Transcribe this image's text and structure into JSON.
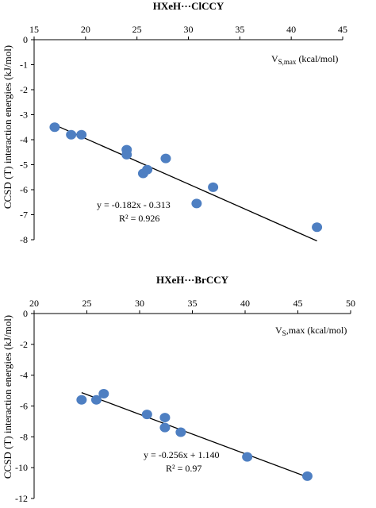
{
  "ylabel": "CCSD (T) interaction energies (kJ/mol)",
  "chart_data": [
    {
      "type": "scatter",
      "title": "HXeH···ClCCY",
      "xlabel": "V",
      "xlabel_sub": "S,max",
      "xlabel_unit": " (kcal/mol)",
      "xlim": [
        15,
        45
      ],
      "xticks": [
        15,
        20,
        25,
        30,
        35,
        40,
        45
      ],
      "ylim": [
        -8,
        0
      ],
      "yticks": [
        0,
        -1,
        -2,
        -3,
        -4,
        -5,
        -6,
        -7,
        -8
      ],
      "x": [
        17.0,
        18.6,
        19.6,
        24.0,
        24.0,
        25.6,
        26.0,
        27.8,
        30.8,
        32.4,
        42.5
      ],
      "y": [
        -3.5,
        -3.8,
        -3.8,
        -4.4,
        -4.6,
        -5.35,
        -5.2,
        -4.75,
        -6.55,
        -5.9,
        -7.5
      ],
      "trendline": {
        "slope": -0.182,
        "intercept": -0.313,
        "x_range": [
          17.0,
          42.5
        ]
      },
      "equation": "y = -0.182x - 0.313",
      "r2": "R² = 0.926",
      "marker_color": "#4e7fc2",
      "line_color": "#000000"
    },
    {
      "type": "scatter",
      "title": "HXeH···BrCCY",
      "xlabel": "V",
      "xlabel_sub": "S",
      "xlabel_unit": ",max (kcal/mol)",
      "xlim": [
        20,
        50
      ],
      "xticks": [
        20,
        25,
        30,
        35,
        40,
        45,
        50
      ],
      "ylim": [
        -12,
        0
      ],
      "yticks": [
        0,
        -2,
        -4,
        -6,
        -8,
        -10,
        -12
      ],
      "x": [
        24.5,
        25.9,
        26.6,
        30.7,
        32.4,
        32.4,
        33.9,
        40.2,
        45.9
      ],
      "y": [
        -5.6,
        -5.6,
        -5.2,
        -6.55,
        -6.75,
        -7.4,
        -7.7,
        -9.3,
        -10.55
      ],
      "trendline": {
        "slope": -0.256,
        "intercept": 1.14,
        "x_range": [
          24.5,
          45.9
        ]
      },
      "equation": "y = -0.256x + 1.140",
      "r2": "R² = 0.97",
      "marker_color": "#4e7fc2",
      "line_color": "#000000"
    }
  ]
}
